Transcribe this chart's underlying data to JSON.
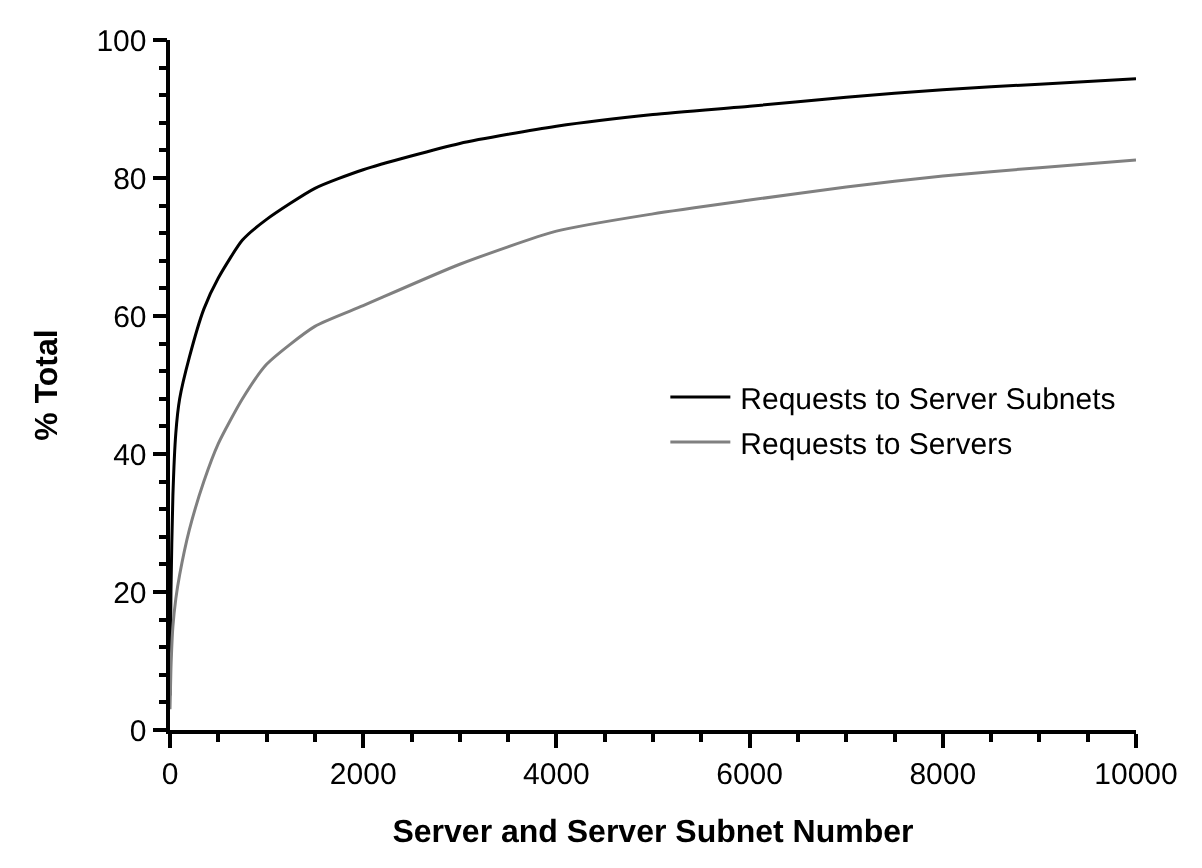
{
  "chart_data": {
    "type": "line",
    "xlabel": "Server and Server Subnet Number",
    "ylabel": "% Total",
    "xlim": [
      0,
      10000
    ],
    "xticks": [
      0,
      2000,
      4000,
      6000,
      8000,
      10000
    ],
    "ylim": [
      0,
      100
    ],
    "yticks": [
      0,
      20,
      40,
      60,
      80,
      100
    ],
    "legend": "right",
    "marker": "none",
    "line_style": "solid",
    "series": [
      {
        "name": "Requests to Server Subnets",
        "color": "#000000",
        "x": [
          0,
          10,
          30,
          60,
          100,
          200,
          350,
          500,
          750,
          1000,
          1500,
          2000,
          3000,
          4000,
          5000,
          6000,
          7000,
          8000,
          9000,
          10000
        ],
        "values": [
          5,
          20,
          34,
          43,
          48,
          54,
          61,
          65.5,
          71,
          74,
          78.5,
          81.2,
          85,
          87.5,
          89.2,
          90.4,
          91.7,
          92.8,
          93.6,
          94.4
        ]
      },
      {
        "name": "Requests to Servers",
        "color": "#808080",
        "x": [
          0,
          10,
          30,
          60,
          100,
          200,
          350,
          500,
          750,
          1000,
          1500,
          2000,
          3000,
          4000,
          5000,
          6000,
          7000,
          8000,
          9000,
          10000
        ],
        "values": [
          3,
          9,
          15,
          19,
          22.5,
          29,
          36,
          41.5,
          48,
          53,
          58.5,
          61.5,
          67.5,
          72.3,
          74.8,
          76.8,
          78.7,
          80.3,
          81.5,
          82.6
        ]
      }
    ]
  }
}
